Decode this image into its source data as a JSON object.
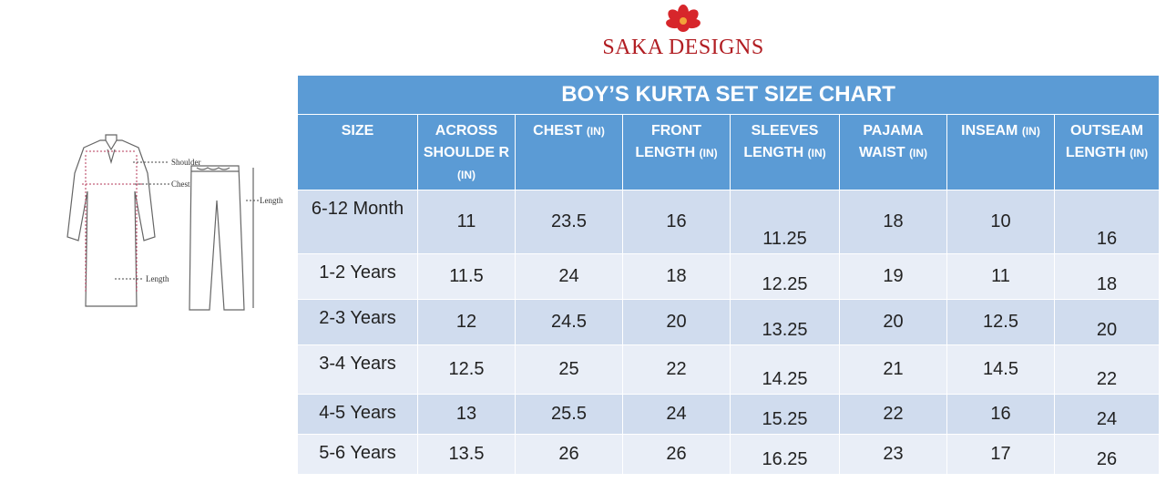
{
  "brand": {
    "name": "SAKA DESIGNS",
    "logo_icon": "red-lotus-flower-icon",
    "color": "#b11d22"
  },
  "illustration": {
    "labels": {
      "shoulder": "Shoulder",
      "chest": "Chest",
      "kurta_length": "Length",
      "pants_length": "Length"
    }
  },
  "chart": {
    "title": "BOY’S KURTA SET SIZE CHART",
    "header_color": "#5b9bd5",
    "headers": [
      {
        "text": "SIZE",
        "unit": ""
      },
      {
        "text": "ACROSS SHOULDE R",
        "unit": "(IN)"
      },
      {
        "text": "CHEST",
        "unit": "(IN)"
      },
      {
        "text": "FRONT LENGTH",
        "unit": "(IN)"
      },
      {
        "text": "SLEEVES LENGTH",
        "unit": "(IN)"
      },
      {
        "text": "PAJAMA WAIST",
        "unit": "(IN)"
      },
      {
        "text": "INSEAM",
        "unit": "(IN)"
      },
      {
        "text": "OUTSEAM LENGTH",
        "unit": "(IN)"
      }
    ],
    "rows": [
      [
        "6-12 Month",
        "11",
        "23.5",
        "16",
        "11.25",
        "18",
        "10",
        "16"
      ],
      [
        "1-2 Years",
        "11.5",
        "24",
        "18",
        "12.25",
        "19",
        "11",
        "18"
      ],
      [
        "2-3 Years",
        "12",
        "24.5",
        "20",
        "13.25",
        "20",
        "12.5",
        "20"
      ],
      [
        "3-4 Years",
        "12.5",
        "25",
        "22",
        "14.25",
        "21",
        "14.5",
        "22"
      ],
      [
        "4-5 Years",
        "13",
        "25.5",
        "24",
        "15.25",
        "22",
        "16",
        "24"
      ],
      [
        "5-6 Years",
        "13.5",
        "26",
        "26",
        "16.25",
        "23",
        "17",
        "26"
      ]
    ]
  }
}
